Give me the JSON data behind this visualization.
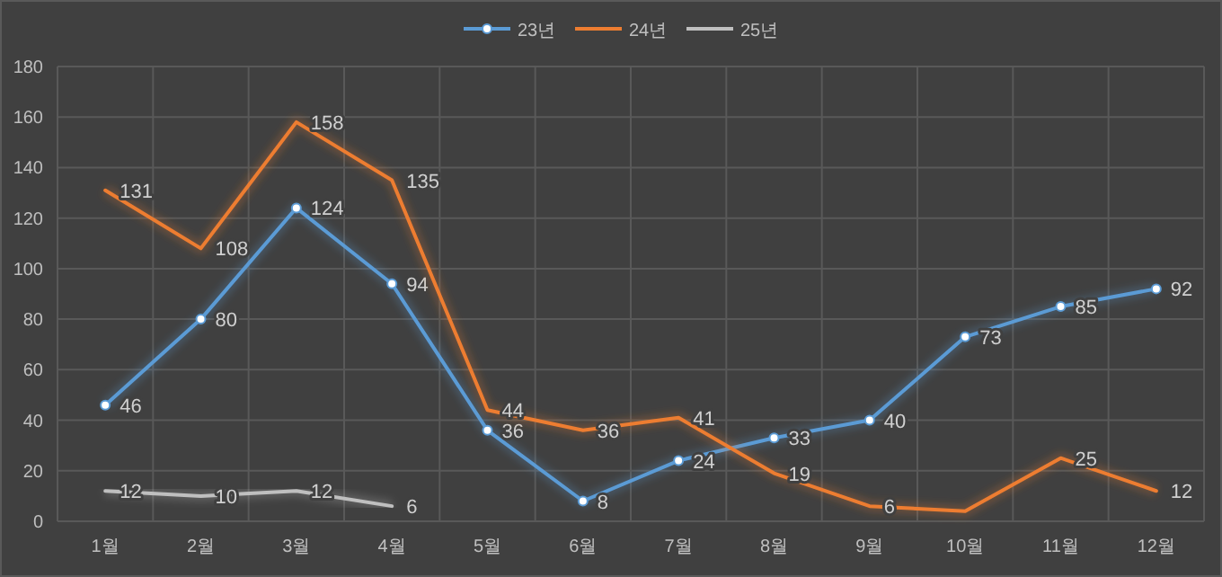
{
  "chart_data": {
    "type": "line",
    "categories": [
      "1월",
      "2월",
      "3월",
      "4월",
      "5월",
      "6월",
      "7월",
      "8월",
      "9월",
      "10월",
      "11월",
      "12월"
    ],
    "series": [
      {
        "name": "23년",
        "color": "#5b9bd5",
        "marker": "circle",
        "values": [
          46,
          80,
          124,
          94,
          36,
          8,
          24,
          33,
          40,
          73,
          85,
          92
        ],
        "value_labels": [
          "46",
          "80",
          "124",
          "94",
          "36",
          "8",
          "24",
          "33",
          "40",
          "73",
          "85",
          "92"
        ]
      },
      {
        "name": "24년",
        "color": "#ed7d31",
        "marker": "none",
        "values": [
          131,
          108,
          158,
          135,
          44,
          36,
          41,
          19,
          6,
          4,
          25,
          12
        ],
        "value_labels": [
          "131",
          "108",
          "158",
          "135",
          "44",
          "36",
          "41",
          "19",
          "6",
          null,
          "25",
          "12"
        ]
      },
      {
        "name": "25년",
        "color": "#bfbfbf",
        "marker": "none",
        "values": [
          12,
          10,
          12,
          6,
          null,
          null,
          null,
          null,
          null,
          null,
          null,
          null
        ],
        "value_labels": [
          "12",
          "10",
          "12",
          "6",
          null,
          null,
          null,
          null,
          null,
          null,
          null,
          null
        ]
      }
    ],
    "ylim": [
      0,
      180
    ],
    "yticks": [
      0,
      20,
      40,
      60,
      80,
      100,
      120,
      140,
      160,
      180
    ],
    "grid": true,
    "legend": "top"
  }
}
